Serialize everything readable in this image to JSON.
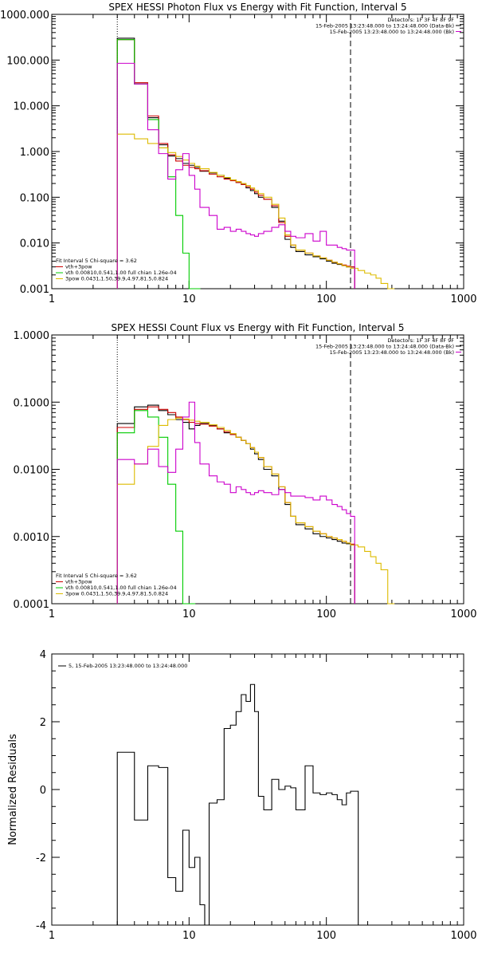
{
  "colors": {
    "black": "#000000",
    "red": "#cc0000",
    "green": "#00cc00",
    "yellow": "#ddbb00",
    "magenta": "#cc00cc"
  },
  "chart_data": [
    {
      "type": "line",
      "title": "SPEX HESSI Photon Flux vs Energy with Fit Function, Interval 5",
      "xscale": "log",
      "yscale": "log",
      "xlim": [
        1,
        1000
      ],
      "ylim": [
        0.001,
        1000
      ],
      "xticks": [
        "1",
        "10",
        "100",
        "1000"
      ],
      "yticks": [
        "0.001",
        "0.010",
        "0.100",
        "1.000",
        "10.000",
        "100.000",
        "1000.000"
      ],
      "vlines": [
        {
          "x": 3,
          "style": "dotted"
        },
        {
          "x": 150,
          "style": "dashed"
        }
      ],
      "legend_top": [
        "Detectors: 1F 3F 4F 8F 9F",
        "15-Feb-2005 13:23:48.000 to 13:24:48.000 (Data-Bk)",
        "15-Feb-2005 13:23:48.000 to 13:24:48.000 (Bk)"
      ],
      "legend_bottom": [
        "Fit Interval 5   Chi-square = 3.62",
        "vth+3pow",
        "vth 0.00810,0.541,1.00  full chian 1.26e-04",
        "3pow 0.0431,1.50,39.9,4.97,81.5,0.824"
      ],
      "series": [
        {
          "name": "Data-Bk",
          "color": "black",
          "x": [
            3,
            4,
            5,
            6,
            7,
            8,
            9,
            10,
            11,
            12,
            14,
            16,
            18,
            20,
            22,
            24,
            26,
            28,
            30,
            32,
            35,
            40,
            45,
            50,
            55,
            60,
            70,
            80,
            90,
            100,
            110,
            120,
            130,
            140,
            150
          ],
          "y": [
            300,
            30,
            5.5,
            1.4,
            0.8,
            0.7,
            0.55,
            0.5,
            0.45,
            0.37,
            0.34,
            0.3,
            0.26,
            0.24,
            0.21,
            0.19,
            0.16,
            0.14,
            0.12,
            0.1,
            0.09,
            0.06,
            0.03,
            0.012,
            0.008,
            0.0065,
            0.0055,
            0.005,
            0.0045,
            0.004,
            0.0036,
            0.0034,
            0.0032,
            0.003,
            0.003
          ]
        },
        {
          "name": "vth+3pow",
          "color": "red",
          "x": [
            3,
            4,
            5,
            6,
            7,
            8,
            9,
            10,
            11,
            12,
            14,
            16,
            18,
            20,
            22,
            24,
            26,
            28,
            30,
            32,
            35,
            40,
            45,
            50,
            55,
            60,
            70,
            80,
            90,
            100,
            110,
            120,
            130,
            140,
            150
          ],
          "y": [
            280,
            32,
            6,
            1.5,
            0.85,
            0.62,
            0.5,
            0.45,
            0.42,
            0.38,
            0.32,
            0.28,
            0.25,
            0.23,
            0.21,
            0.19,
            0.17,
            0.15,
            0.13,
            0.11,
            0.09,
            0.065,
            0.028,
            0.014,
            0.009,
            0.007,
            0.006,
            0.0052,
            0.0047,
            0.0042,
            0.0038,
            0.0035,
            0.0033,
            0.0031,
            0.003
          ]
        },
        {
          "name": "vth",
          "color": "green",
          "x": [
            3,
            4,
            5,
            6,
            7,
            8,
            9,
            10,
            11
          ],
          "y": [
            280,
            30,
            5,
            1.2,
            0.28,
            0.04,
            0.006,
            0.0009,
            0.0009
          ]
        },
        {
          "name": "3pow",
          "color": "yellow",
          "x": [
            3,
            4,
            5,
            6,
            7,
            8,
            9,
            10,
            11,
            12,
            14,
            16,
            18,
            20,
            22,
            24,
            26,
            28,
            30,
            32,
            35,
            40,
            45,
            50,
            55,
            60,
            70,
            80,
            90,
            100,
            110,
            120,
            130,
            140,
            150,
            170,
            190,
            210,
            230,
            250,
            280
          ],
          "y": [
            2.4,
            1.9,
            1.5,
            1.2,
            0.95,
            0.78,
            0.65,
            0.55,
            0.48,
            0.42,
            0.35,
            0.3,
            0.27,
            0.24,
            0.22,
            0.2,
            0.18,
            0.16,
            0.14,
            0.12,
            0.1,
            0.07,
            0.035,
            0.015,
            0.009,
            0.007,
            0.006,
            0.0052,
            0.0047,
            0.0042,
            0.0038,
            0.0035,
            0.0032,
            0.003,
            0.0028,
            0.0025,
            0.0022,
            0.002,
            0.0017,
            0.0013,
            0.0009
          ]
        },
        {
          "name": "Bk",
          "color": "magenta",
          "x": [
            3,
            4,
            5,
            6,
            7,
            8,
            9,
            10,
            11,
            12,
            14,
            16,
            18,
            20,
            22,
            24,
            26,
            28,
            30,
            32,
            35,
            40,
            45,
            50,
            55,
            60,
            70,
            80,
            90,
            100,
            110,
            120,
            130,
            140,
            150
          ],
          "y": [
            85,
            30,
            3,
            0.9,
            0.25,
            0.4,
            0.9,
            0.3,
            0.15,
            0.06,
            0.04,
            0.02,
            0.022,
            0.018,
            0.02,
            0.018,
            0.016,
            0.015,
            0.014,
            0.016,
            0.018,
            0.022,
            0.025,
            0.018,
            0.014,
            0.013,
            0.016,
            0.011,
            0.018,
            0.009,
            0.009,
            0.008,
            0.0075,
            0.007,
            0.007
          ]
        }
      ]
    },
    {
      "type": "line",
      "title": "SPEX HESSI Count Flux vs Energy with Fit Function, Interval 5",
      "xscale": "log",
      "yscale": "log",
      "xlim": [
        1,
        1000
      ],
      "ylim": [
        0.0001,
        1
      ],
      "xticks": [
        "1",
        "10",
        "100",
        "1000"
      ],
      "yticks": [
        "0.0001",
        "0.0010",
        "0.0100",
        "0.1000",
        "1.0000"
      ],
      "vlines": [
        {
          "x": 3,
          "style": "dotted"
        },
        {
          "x": 150,
          "style": "dashed"
        }
      ],
      "legend_top": [
        "Detectors: 1F 3F 4F 8F 9F",
        "15-Feb-2005 13:23:48.000 to 13:24:48.000 (Data-Bk)",
        "15-Feb-2005 13:23:48.000 to 13:24:48.000 (Bk)"
      ],
      "legend_bottom": [
        "Fit Interval 5   Chi-square = 3.62",
        "vth+3pow",
        "vth 0.00810,0.541,1.00  full chian 1.26e-04",
        "3pow 0.0431,1.50,39.9,4.97,81.5,0.824"
      ],
      "series": [
        {
          "name": "Data-Bk",
          "color": "black",
          "x": [
            3,
            4,
            5,
            6,
            7,
            8,
            9,
            10,
            11,
            12,
            14,
            16,
            18,
            20,
            22,
            24,
            26,
            28,
            30,
            32,
            35,
            40,
            45,
            50,
            55,
            60,
            70,
            80,
            90,
            100,
            110,
            120,
            130,
            140,
            150
          ],
          "y": [
            0.048,
            0.085,
            0.09,
            0.075,
            0.065,
            0.055,
            0.05,
            0.04,
            0.045,
            0.048,
            0.045,
            0.04,
            0.035,
            0.033,
            0.03,
            0.027,
            0.024,
            0.02,
            0.017,
            0.014,
            0.01,
            0.008,
            0.005,
            0.003,
            0.002,
            0.0015,
            0.0013,
            0.0011,
            0.001,
            0.00095,
            0.0009,
            0.00085,
            0.0008,
            0.00078,
            0.00075
          ]
        },
        {
          "name": "vth+3pow",
          "color": "red",
          "x": [
            3,
            4,
            5,
            6,
            7,
            8,
            9,
            10,
            11,
            12,
            14,
            16,
            18,
            20,
            22,
            24,
            26,
            28,
            30,
            32,
            35,
            40,
            45,
            50,
            55,
            60,
            70,
            80,
            90,
            100,
            110,
            120,
            130,
            140,
            150
          ],
          "y": [
            0.042,
            0.078,
            0.085,
            0.078,
            0.07,
            0.06,
            0.055,
            0.05,
            0.048,
            0.047,
            0.044,
            0.04,
            0.036,
            0.033,
            0.03,
            0.027,
            0.024,
            0.021,
            0.018,
            0.015,
            0.011,
            0.0085,
            0.0055,
            0.0032,
            0.002,
            0.0016,
            0.0014,
            0.0012,
            0.0011,
            0.001,
            0.00095,
            0.0009,
            0.00085,
            0.0008,
            0.00077
          ]
        },
        {
          "name": "vth",
          "color": "green",
          "x": [
            3,
            4,
            5,
            6,
            7,
            8,
            9,
            10
          ],
          "y": [
            0.035,
            0.075,
            0.06,
            0.03,
            0.006,
            0.0012,
            0.0001,
            0.0001
          ]
        },
        {
          "name": "3pow",
          "color": "yellow",
          "x": [
            3,
            4,
            5,
            6,
            7,
            8,
            9,
            10,
            11,
            12,
            14,
            16,
            18,
            20,
            22,
            24,
            26,
            28,
            30,
            32,
            35,
            40,
            45,
            50,
            55,
            60,
            70,
            80,
            90,
            100,
            110,
            120,
            130,
            140,
            150,
            170,
            190,
            210,
            230,
            250,
            280
          ],
          "y": [
            0.006,
            0.012,
            0.022,
            0.045,
            0.055,
            0.058,
            0.056,
            0.054,
            0.052,
            0.05,
            0.046,
            0.042,
            0.038,
            0.034,
            0.03,
            0.027,
            0.024,
            0.021,
            0.018,
            0.015,
            0.011,
            0.0085,
            0.0055,
            0.0032,
            0.002,
            0.0016,
            0.0014,
            0.0012,
            0.0011,
            0.001,
            0.00095,
            0.0009,
            0.00085,
            0.0008,
            0.00075,
            0.0007,
            0.0006,
            0.0005,
            0.0004,
            0.00032,
            0.0001
          ]
        },
        {
          "name": "Bk",
          "color": "magenta",
          "x": [
            3,
            4,
            5,
            6,
            7,
            8,
            9,
            10,
            11,
            12,
            14,
            16,
            18,
            20,
            22,
            24,
            26,
            28,
            30,
            32,
            35,
            40,
            45,
            50,
            55,
            60,
            70,
            80,
            90,
            100,
            110,
            120,
            130,
            140,
            150
          ],
          "y": [
            0.014,
            0.012,
            0.02,
            0.011,
            0.009,
            0.02,
            0.06,
            0.1,
            0.025,
            0.012,
            0.008,
            0.0065,
            0.006,
            0.0045,
            0.0055,
            0.005,
            0.0045,
            0.0042,
            0.0045,
            0.0048,
            0.0045,
            0.0042,
            0.005,
            0.0045,
            0.004,
            0.004,
            0.0038,
            0.0035,
            0.004,
            0.0035,
            0.003,
            0.0028,
            0.0025,
            0.0022,
            0.002
          ]
        }
      ]
    },
    {
      "type": "line",
      "title": "",
      "xscale": "log",
      "yscale": "linear",
      "xlim": [
        1,
        1000
      ],
      "ylim": [
        -4,
        4
      ],
      "xticks": [
        "1",
        "10",
        "100",
        "1000"
      ],
      "yticks": [
        "-4",
        "-2",
        "0",
        "2",
        "4"
      ],
      "ylabel": "Normalized Residuals",
      "legend": [
        "5, 15-Feb-2005 13:23:48.000 to 13:24:48.000"
      ],
      "series": [
        {
          "name": "5, 15-Feb-2005 13:23:48.000 to 13:24:48.000",
          "color": "black",
          "x": [
            3,
            4,
            5,
            6,
            7,
            8,
            9,
            10,
            11,
            12,
            13,
            14,
            16,
            18,
            20,
            22,
            24,
            26,
            28,
            30,
            32,
            35,
            40,
            45,
            50,
            55,
            60,
            70,
            80,
            90,
            100,
            110,
            120,
            130,
            140,
            150,
            160
          ],
          "y": [
            1.1,
            -0.9,
            0.7,
            0.65,
            -2.6,
            -3.0,
            -1.2,
            -2.3,
            -2.0,
            -3.4,
            -4.0,
            -0.4,
            -0.3,
            1.8,
            1.9,
            2.3,
            2.8,
            2.6,
            3.1,
            2.3,
            -0.2,
            -0.6,
            0.3,
            0.0,
            0.1,
            0.05,
            -0.6,
            0.7,
            -0.1,
            -0.15,
            -0.1,
            -0.15,
            -0.3,
            -0.45,
            -0.1,
            -0.05,
            -0.05
          ]
        }
      ]
    }
  ]
}
